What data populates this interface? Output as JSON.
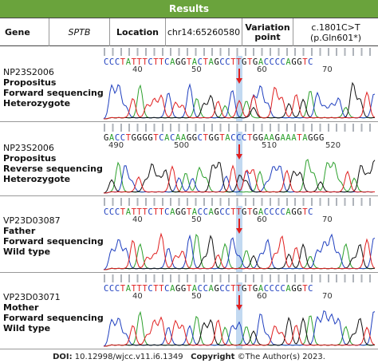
{
  "header": {
    "title": "Results"
  },
  "info": {
    "gene_label": "Gene",
    "gene_value": "SPTB",
    "location_label": "Location",
    "location_value": "chr14:65260580",
    "variation_label": "Variation point",
    "variation_value_line1": "c.1801C>T",
    "variation_value_line2": "(p.Gln601*)"
  },
  "panels": [
    {
      "id": "NP23S2006",
      "role": "Propositus",
      "method": "Forward sequencing",
      "genotype": "Heterozygote",
      "sequence": "CCCTATTTCTTCAGGTACTAGCCTTGTGACCCCAGGTC",
      "positions": [
        "40",
        "50",
        "60",
        "70"
      ]
    },
    {
      "id": "NP23S2006",
      "role": "Propositus",
      "method": "Reverse sequencing",
      "genotype": "Heterozygote",
      "sequence": "GACCTGGGGTCACAAGGCTGGTACCCTGGAAGAAATAGGG",
      "positions": [
        "490",
        "500",
        "510",
        "520"
      ]
    },
    {
      "id": "VP23D03087",
      "role": "Father",
      "method": "Forward sequencing",
      "genotype": "Wild type",
      "sequence": "CCCTATTTCTTCAGGTACCAGCCTTGTGACCCCAGGTC",
      "positions": [
        "40",
        "50",
        "60",
        "70"
      ]
    },
    {
      "id": "VP23D03071",
      "role": "Mother",
      "method": "Forward sequencing",
      "genotype": "Wild type",
      "sequence": "CCCTATTTCTTCAGGTACCAGCCTTGTGACCCCAGGTC",
      "positions": [
        "40",
        "50",
        "60",
        "70"
      ]
    }
  ],
  "footer": {
    "doi_label": "DOI:",
    "doi_value": "10.12998/wjcc.v11.i6.1349",
    "copyright_label": "Copyright",
    "copyright_value": "©The Author(s) 2023."
  },
  "colors": {
    "header_bg": "#6aa33c",
    "A": "#2ca02c",
    "C": "#1f3fbf",
    "G": "#111111",
    "T": "#e02020",
    "highlight": "#78aae1",
    "arrow": "#e02020"
  }
}
